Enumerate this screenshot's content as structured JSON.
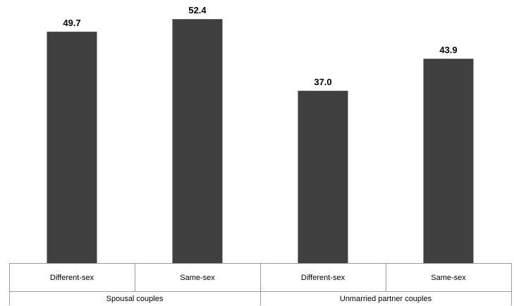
{
  "chart_data": {
    "type": "bar",
    "categories": [
      "Different-sex",
      "Same-sex",
      "Different-sex",
      "Same-sex"
    ],
    "groups": [
      {
        "label": "Spousal couples",
        "categories": [
          0,
          1
        ]
      },
      {
        "label": "Unmarried partner couples",
        "categories": [
          2,
          3
        ]
      }
    ],
    "values": [
      49.7,
      52.4,
      37.0,
      43.9
    ],
    "data_labels": [
      "49.7",
      "52.4",
      "37.0",
      "43.9"
    ],
    "ylim": [
      0,
      55
    ],
    "grid": false,
    "legend": "none",
    "bar_color": "#404040"
  }
}
